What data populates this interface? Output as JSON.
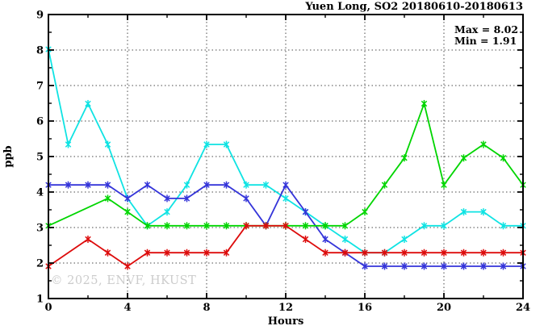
{
  "chart_data": {
    "type": "line",
    "title": "Yuen Long, SO2 20180610-20180613",
    "xlabel": "Hours",
    "ylabel": "ppb",
    "xlim": [
      0,
      24
    ],
    "ylim": [
      1,
      9
    ],
    "x_major_ticks": [
      0,
      4,
      8,
      12,
      16,
      20,
      24
    ],
    "x_minor_ticks": [
      2,
      6,
      10,
      14,
      18,
      22
    ],
    "y_major_ticks": [
      1,
      2,
      3,
      4,
      5,
      6,
      7,
      8,
      9
    ],
    "y_minor_ticks": [
      1.5,
      2.5,
      3.5,
      4.5,
      5.5,
      6.5,
      7.5,
      8.5
    ],
    "grid_h_at": [
      2,
      3,
      4,
      5,
      6,
      7,
      8
    ],
    "grid_v_at": [
      4,
      8,
      12,
      16,
      20
    ],
    "legend": "none",
    "annotation": {
      "max": "Max = 8.02",
      "min": "Min = 1.91"
    },
    "watermark": "© 2025, ENVF, HKUST",
    "x": [
      0,
      1,
      2,
      3,
      4,
      5,
      6,
      7,
      8,
      9,
      10,
      11,
      12,
      13,
      14,
      15,
      16,
      17,
      18,
      19,
      20,
      21,
      22,
      23,
      24
    ],
    "series": [
      {
        "name": "series-cyan",
        "color": "#0fe3e3",
        "marker": "asterisk",
        "values": [
          8.02,
          5.34,
          6.49,
          5.34,
          3.82,
          3.05,
          3.44,
          4.2,
          5.34,
          5.34,
          4.2,
          4.2,
          3.82,
          3.44,
          3.05,
          2.67,
          2.29,
          2.29,
          2.67,
          3.05,
          3.05,
          3.44,
          3.44,
          3.05,
          3.05
        ]
      },
      {
        "name": "series-blue",
        "color": "#3434d9",
        "marker": "asterisk",
        "values": [
          4.2,
          4.2,
          4.2,
          4.2,
          3.82,
          4.2,
          3.82,
          3.82,
          4.2,
          4.2,
          3.82,
          3.05,
          4.2,
          3.44,
          2.67,
          2.29,
          1.91,
          1.91,
          1.91,
          1.91,
          1.91,
          1.91,
          1.91,
          1.91,
          1.91
        ]
      },
      {
        "name": "series-green",
        "color": "#00d500",
        "marker": "asterisk",
        "values": [
          3.05,
          null,
          null,
          3.82,
          3.44,
          3.05,
          3.05,
          3.05,
          3.05,
          3.05,
          3.05,
          3.05,
          3.05,
          3.05,
          3.05,
          3.05,
          3.44,
          4.2,
          4.96,
          6.49,
          4.2,
          4.96,
          5.34,
          4.96,
          4.2
        ]
      },
      {
        "name": "series-red",
        "color": "#dd0c0c",
        "marker": "asterisk",
        "values": [
          1.91,
          null,
          2.67,
          2.29,
          1.91,
          2.29,
          2.29,
          2.29,
          2.29,
          2.29,
          3.05,
          3.05,
          3.05,
          2.67,
          2.29,
          2.29,
          2.29,
          2.29,
          2.29,
          2.29,
          2.29,
          2.29,
          2.29,
          2.29,
          2.29
        ]
      }
    ]
  }
}
